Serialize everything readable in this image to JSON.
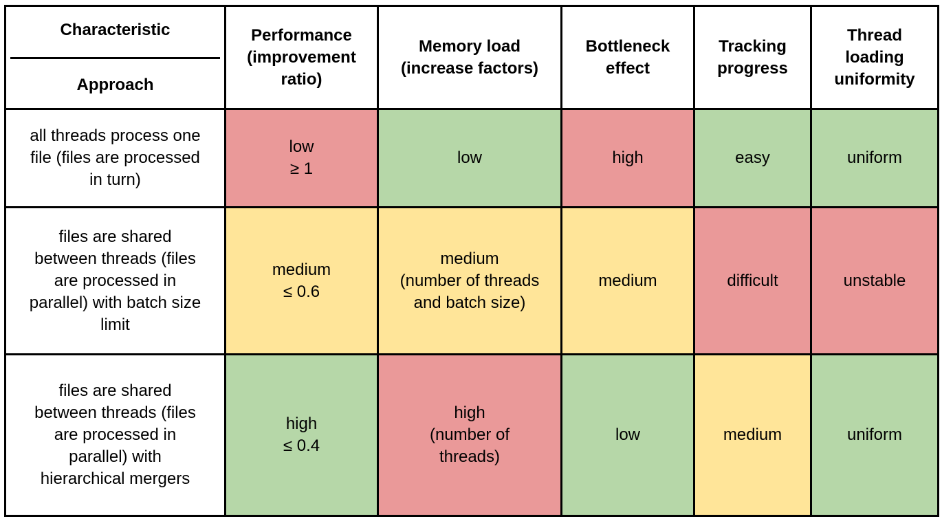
{
  "header": {
    "corner_top": "Characteristic",
    "corner_bottom": "Approach",
    "columns": [
      "Performance\n(improvement\nratio)",
      "Memory load\n(increase factors)",
      "Bottleneck\neffect",
      "Tracking\nprogress",
      "Thread\nloading\nuniformity"
    ]
  },
  "colors": {
    "good": "#b6d7a8",
    "medium": "#ffe599",
    "bad": "#ea9999"
  },
  "rows": [
    {
      "approach": "all threads process one\nfile (files are processed\nin turn)",
      "cells": [
        {
          "text": "low\n≥ 1",
          "rating": "bad"
        },
        {
          "text": "low",
          "rating": "good"
        },
        {
          "text": "high",
          "rating": "bad"
        },
        {
          "text": "easy",
          "rating": "good"
        },
        {
          "text": "uniform",
          "rating": "good"
        }
      ]
    },
    {
      "approach": "files are shared\nbetween threads (files\nare processed in\nparallel) with batch size\nlimit",
      "cells": [
        {
          "text": "medium\n≤ 0.6",
          "rating": "medium"
        },
        {
          "text": "medium\n(number of threads\nand batch size)",
          "rating": "medium"
        },
        {
          "text": "medium",
          "rating": "medium"
        },
        {
          "text": "difficult",
          "rating": "bad"
        },
        {
          "text": "unstable",
          "rating": "bad"
        }
      ]
    },
    {
      "approach": "files are shared\nbetween threads (files\nare processed in\nparallel) with\nhierarchical mergers",
      "cells": [
        {
          "text": "high\n≤ 0.4",
          "rating": "good"
        },
        {
          "text": "high\n(number of\nthreads)",
          "rating": "bad"
        },
        {
          "text": "low",
          "rating": "good"
        },
        {
          "text": "medium",
          "rating": "medium"
        },
        {
          "text": "uniform",
          "rating": "good"
        }
      ]
    }
  ]
}
